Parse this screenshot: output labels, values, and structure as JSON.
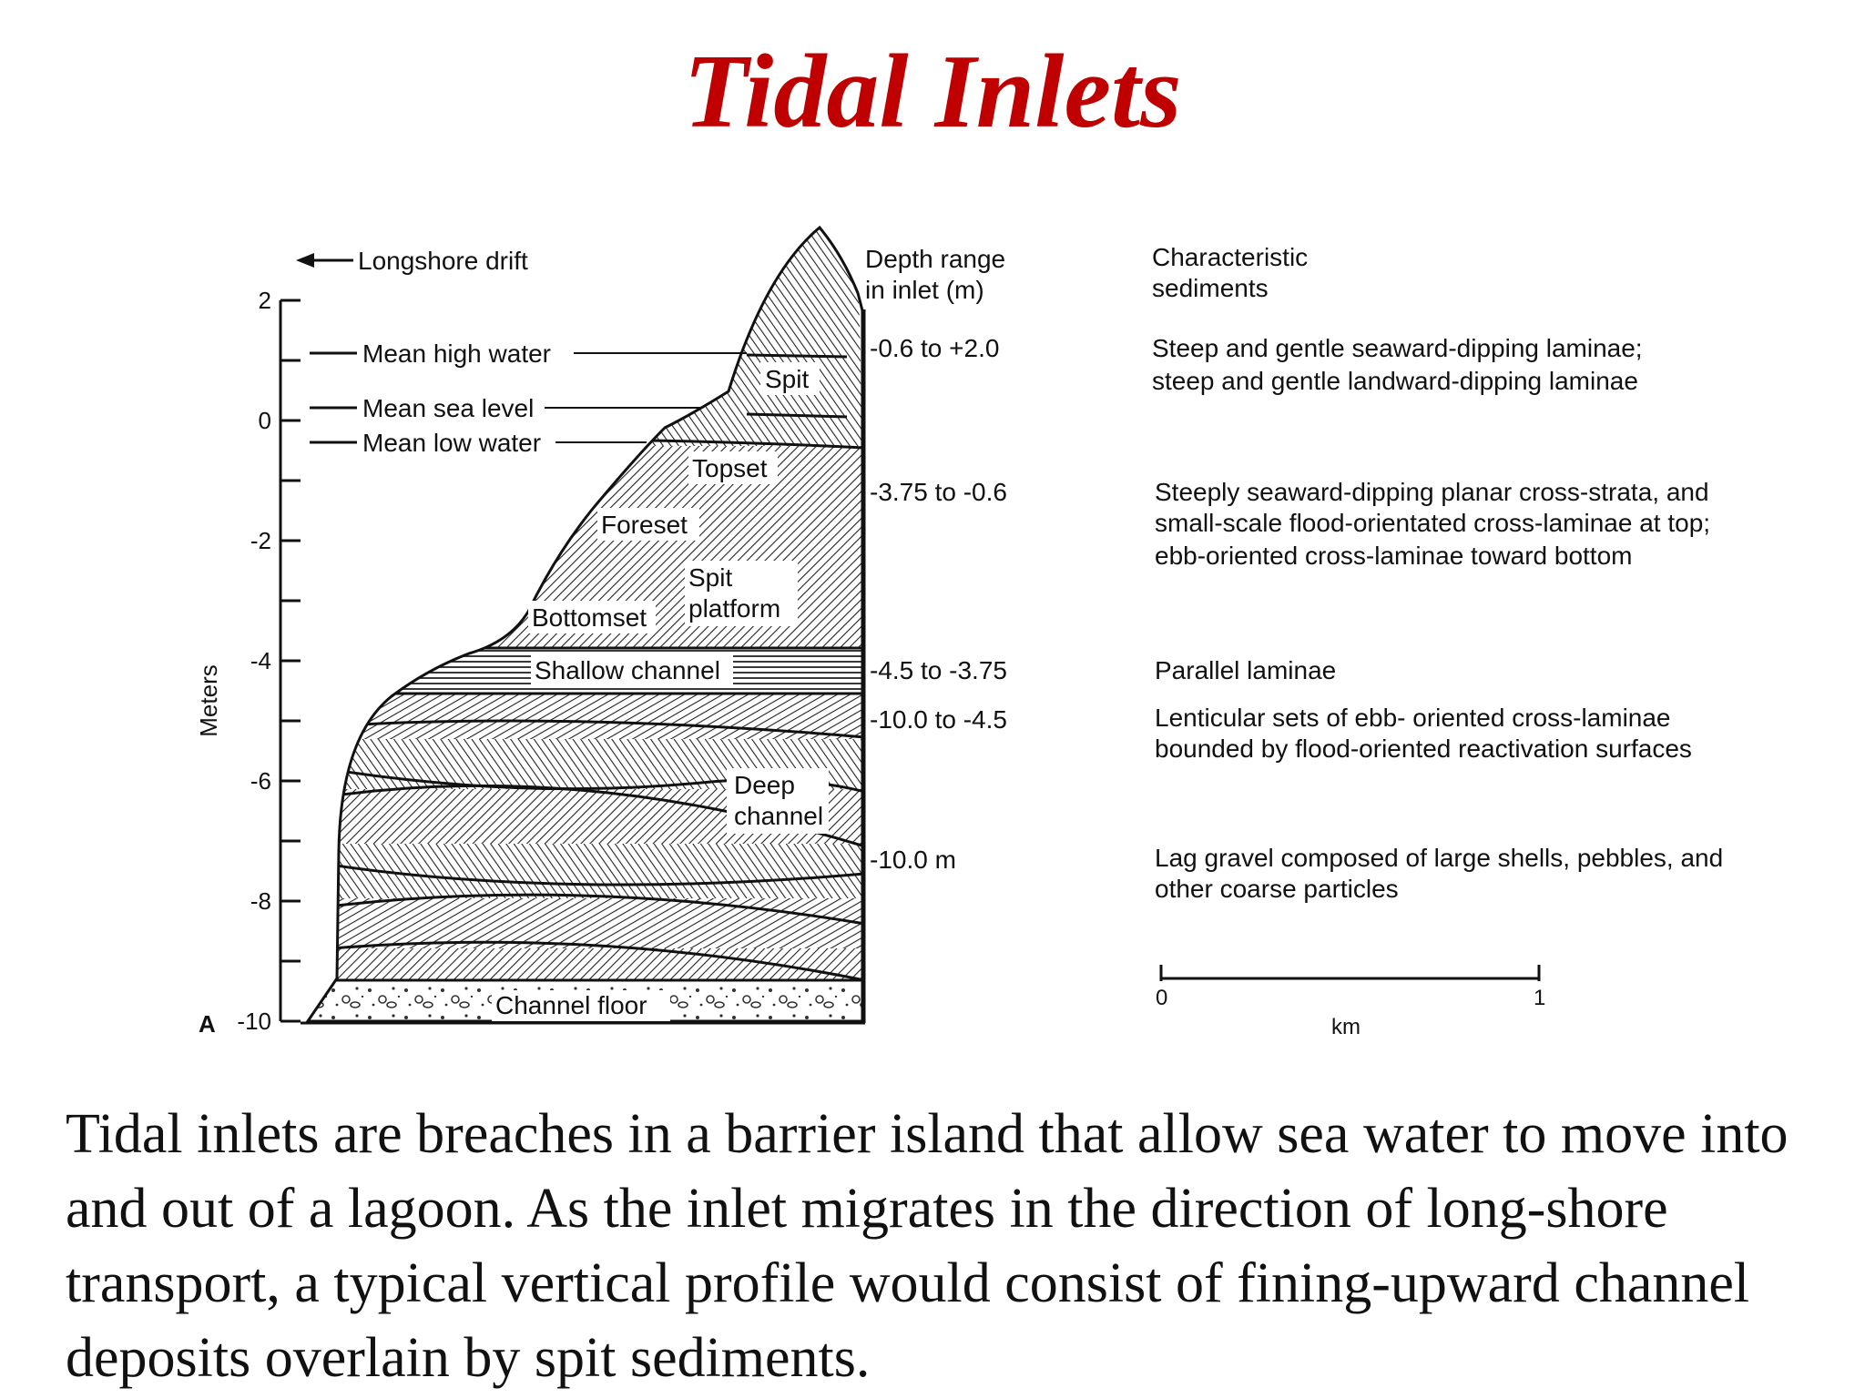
{
  "title": "Tidal Inlets",
  "figure": {
    "arrow_label": "Longshore drift",
    "axis_label": "Meters",
    "panel_letter": "A",
    "y_ticks": [
      "2",
      "0",
      "-2",
      "-4",
      "-6",
      "-8",
      "-10"
    ],
    "water_levels": [
      "Mean high water",
      "Mean sea level",
      "Mean low water"
    ],
    "units": [
      "Spit",
      "Topset",
      "Foreset",
      "Spit",
      "platform",
      "Bottomset",
      "Shallow channel",
      "Deep",
      "channel",
      "Channel floor"
    ],
    "depth_header": [
      "Depth range",
      "in inlet (m)"
    ],
    "depths": [
      "-0.6 to +2.0",
      "-3.75 to -0.6",
      "-4.5 to -3.75",
      "-10.0 to -4.5",
      "-10.0 m"
    ],
    "sediment_header": [
      "Characteristic",
      "sediments"
    ],
    "sediments": [
      [
        "Steep and gentle seaward-dipping laminae;",
        "steep and gentle landward-dipping laminae"
      ],
      [
        "Steeply seaward-dipping planar cross-strata, and",
        "small-scale flood-orientated cross-laminae at top;",
        "ebb-oriented cross-laminae toward bottom"
      ],
      [
        "Parallel laminae"
      ],
      [
        "Lenticular sets of ebb- oriented cross-laminae",
        "bounded by flood-oriented reactivation surfaces"
      ],
      [
        "Lag gravel composed of large shells, pebbles, and",
        "other coarse particles"
      ]
    ],
    "scale_ticks": [
      "0",
      "1"
    ],
    "scale_unit": "km"
  },
  "caption": "Tidal inlets are breaches in a barrier island that allow sea water to move into and out of a lagoon.  As the inlet migrates in the direction of long-shore transport, a typical vertical profile would consist of fining-upward channel deposits overlain by spit sediments."
}
